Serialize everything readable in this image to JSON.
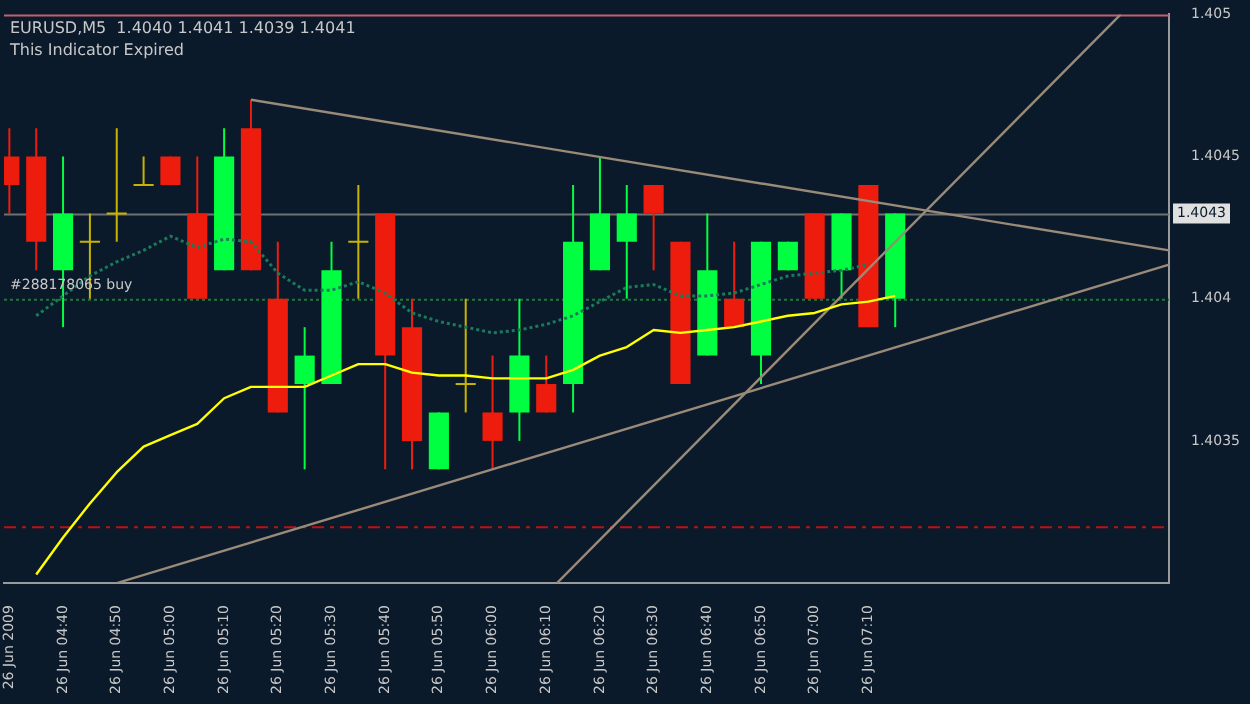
{
  "chart_data": {
    "type": "candlestick",
    "title": "EURUSD,M5  1.4040 1.4041 1.4039 1.4041",
    "annotations": [
      "This Indicator Expired"
    ],
    "x": [
      "2009-06-26T04:30",
      "2009-06-26T04:35",
      "2009-06-26T04:40",
      "2009-06-26T04:45",
      "2009-06-26T04:50",
      "2009-06-26T04:55",
      "2009-06-26T05:00",
      "2009-06-26T05:05",
      "2009-06-26T05:10",
      "2009-06-26T05:15",
      "2009-06-26T05:20",
      "2009-06-26T05:25",
      "2009-06-26T05:30",
      "2009-06-26T05:35",
      "2009-06-26T05:40",
      "2009-06-26T05:45",
      "2009-06-26T05:50",
      "2009-06-26T05:55",
      "2009-06-26T06:00",
      "2009-06-26T06:05",
      "2009-06-26T06:10",
      "2009-06-26T06:15",
      "2009-06-26T06:20",
      "2009-06-26T06:25",
      "2009-06-26T06:30",
      "2009-06-26T06:35",
      "2009-06-26T06:40",
      "2009-06-26T06:45",
      "2009-06-26T06:50",
      "2009-06-26T06:55",
      "2009-06-26T07:00",
      "2009-06-26T07:05",
      "2009-06-26T07:10",
      "2009-06-26T07:15"
    ],
    "ohlc": [
      [
        1.4045,
        1.4046,
        1.4043,
        1.4044
      ],
      [
        1.4045,
        1.4046,
        1.4041,
        1.4042
      ],
      [
        1.4041,
        1.4045,
        1.4039,
        1.4043
      ],
      [
        1.4042,
        1.4043,
        1.404,
        1.4042
      ],
      [
        1.4043,
        1.4046,
        1.4042,
        1.4043
      ],
      [
        1.4044,
        1.4045,
        1.4044,
        1.4044
      ],
      [
        1.4045,
        1.4045,
        1.4044,
        1.4044
      ],
      [
        1.4043,
        1.4045,
        1.404,
        1.404
      ],
      [
        1.4041,
        1.4046,
        1.4041,
        1.4045
      ],
      [
        1.4046,
        1.4047,
        1.4041,
        1.4041
      ],
      [
        1.404,
        1.4042,
        1.4036,
        1.4036
      ],
      [
        1.4037,
        1.4039,
        1.4034,
        1.4038
      ],
      [
        1.4037,
        1.4042,
        1.4037,
        1.4041
      ],
      [
        1.4042,
        1.4044,
        1.404,
        1.4042
      ],
      [
        1.4043,
        1.4043,
        1.4034,
        1.4038
      ],
      [
        1.4039,
        1.404,
        1.4034,
        1.4035
      ],
      [
        1.4034,
        1.4036,
        1.4034,
        1.4036
      ],
      [
        1.4037,
        1.404,
        1.4036,
        1.4037
      ],
      [
        1.4036,
        1.4038,
        1.4034,
        1.4035
      ],
      [
        1.4036,
        1.404,
        1.4035,
        1.4038
      ],
      [
        1.4037,
        1.4038,
        1.4036,
        1.4036
      ],
      [
        1.4037,
        1.4044,
        1.4036,
        1.4042
      ],
      [
        1.4041,
        1.4045,
        1.4041,
        1.4043
      ],
      [
        1.4042,
        1.4044,
        1.404,
        1.4043
      ],
      [
        1.4044,
        1.4044,
        1.4041,
        1.4043
      ],
      [
        1.4042,
        1.4042,
        1.4037,
        1.4037
      ],
      [
        1.4038,
        1.4043,
        1.4038,
        1.4041
      ],
      [
        1.404,
        1.4042,
        1.4039,
        1.4039
      ],
      [
        1.4038,
        1.4042,
        1.4037,
        1.4042
      ],
      [
        1.4041,
        1.4042,
        1.4041,
        1.4042
      ],
      [
        1.4043,
        1.4043,
        1.404,
        1.404
      ],
      [
        1.4041,
        1.4043,
        1.404,
        1.4043
      ],
      [
        1.4044,
        1.4044,
        1.4039,
        1.4039
      ],
      [
        1.404,
        1.4043,
        1.4039,
        1.4043
      ]
    ],
    "colors": [
      "#ee1c0c",
      "#ee1c0c",
      "#00ff40",
      "#c8b400",
      "#c8b400",
      "#c8b400",
      "#ee1c0c",
      "#ee1c0c",
      "#00ff40",
      "#ee1c0c",
      "#ee1c0c",
      "#00ff40",
      "#00ff40",
      "#c8b400",
      "#ee1c0c",
      "#ee1c0c",
      "#00ff40",
      "#c8b400",
      "#ee1c0c",
      "#00ff40",
      "#ee1c0c",
      "#00ff40",
      "#00ff40",
      "#00ff40",
      "#ee1c0c",
      "#ee1c0c",
      "#00ff40",
      "#ee1c0c",
      "#00ff40",
      "#00ff40",
      "#ee1c0c",
      "#00ff40",
      "#ee1c0c",
      "#00ff40"
    ],
    "series": [
      {
        "type": "line",
        "color": "#ffff00",
        "line_style": "solid",
        "x": [
          "2009-06-26T04:35",
          "2009-06-26T04:40",
          "2009-06-26T04:45",
          "2009-06-26T04:50",
          "2009-06-26T04:55",
          "2009-06-26T05:00",
          "2009-06-26T05:05",
          "2009-06-26T05:10",
          "2009-06-26T05:15",
          "2009-06-26T05:20",
          "2009-06-26T05:25",
          "2009-06-26T05:30",
          "2009-06-26T05:35",
          "2009-06-26T05:40",
          "2009-06-26T05:45",
          "2009-06-26T05:50",
          "2009-06-26T05:55",
          "2009-06-26T06:00",
          "2009-06-26T06:05",
          "2009-06-26T06:10",
          "2009-06-26T06:15",
          "2009-06-26T06:20",
          "2009-06-26T06:25",
          "2009-06-26T06:30",
          "2009-06-26T06:35",
          "2009-06-26T06:40",
          "2009-06-26T06:45",
          "2009-06-26T06:50",
          "2009-06-26T06:55",
          "2009-06-26T07:00",
          "2009-06-26T07:05",
          "2009-06-26T07:10",
          "2009-06-26T07:15"
        ],
        "values": [
          1.40303,
          1.40316,
          1.40328,
          1.40339,
          1.40348,
          1.40352,
          1.40356,
          1.40365,
          1.40369,
          1.40369,
          1.40369,
          1.40373,
          1.40377,
          1.40377,
          1.40374,
          1.40373,
          1.40373,
          1.40372,
          1.40372,
          1.40372,
          1.40375,
          1.4038,
          1.40383,
          1.40389,
          1.40388,
          1.40389,
          1.4039,
          1.40392,
          1.40394,
          1.40395,
          1.40398,
          1.40399,
          1.40401
        ]
      },
      {
        "type": "line",
        "color": "#1a7a5a",
        "line_style": "dotted",
        "x": [
          "2009-06-26T04:35",
          "2009-06-26T04:40",
          "2009-06-26T04:45",
          "2009-06-26T04:50",
          "2009-06-26T04:55",
          "2009-06-26T05:00",
          "2009-06-26T05:05",
          "2009-06-26T05:10",
          "2009-06-26T05:15",
          "2009-06-26T05:20",
          "2009-06-26T05:25",
          "2009-06-26T05:30",
          "2009-06-26T05:35",
          "2009-06-26T05:40",
          "2009-06-26T05:45",
          "2009-06-26T05:50",
          "2009-06-26T05:55",
          "2009-06-26T06:00",
          "2009-06-26T06:05",
          "2009-06-26T06:10",
          "2009-06-26T06:15",
          "2009-06-26T06:20",
          "2009-06-26T06:25",
          "2009-06-26T06:30",
          "2009-06-26T06:35",
          "2009-06-26T06:40",
          "2009-06-26T06:45",
          "2009-06-26T06:50",
          "2009-06-26T06:55",
          "2009-06-26T07:00",
          "2009-06-26T07:05",
          "2009-06-26T07:10"
        ],
        "values": [
          1.40394,
          1.40401,
          1.40408,
          1.40413,
          1.40417,
          1.40422,
          1.40418,
          1.40421,
          1.4042,
          1.40409,
          1.40403,
          1.40403,
          1.40406,
          1.40402,
          1.40395,
          1.40392,
          1.4039,
          1.40388,
          1.40389,
          1.40391,
          1.40394,
          1.40399,
          1.40404,
          1.40405,
          1.40401,
          1.40401,
          1.40402,
          1.40405,
          1.40408,
          1.40409,
          1.4041,
          1.40412
        ]
      },
      {
        "type": "line",
        "color": "#9a8a78",
        "line_style": "solid",
        "x": [
          "2009-06-26T05:15",
          "2009-06-26T08:06"
        ],
        "values": [
          1.4047,
          1.40417
        ]
      },
      {
        "type": "line",
        "color": "#9a8a78",
        "line_style": "solid",
        "x": [
          "2009-06-26T04:50",
          "2009-06-26T08:06"
        ],
        "values": [
          1.403,
          1.40412
        ]
      },
      {
        "type": "line",
        "color": "#9a8a78",
        "line_style": "solid",
        "x": [
          "2009-06-26T06:12",
          "2009-06-26T07:57"
        ],
        "values": [
          1.403,
          1.405
        ]
      }
    ],
    "ref_lines": [
      {
        "axis": "y",
        "value": 1.4043,
        "label": "1.4043",
        "color": "#707070",
        "line_style": "solid"
      },
      {
        "axis": "y",
        "value": 1.404,
        "label": "#288178065 buy",
        "color": "#1f7a3a",
        "line_style": "dotted"
      },
      {
        "axis": "y",
        "value": 1.4032,
        "color": "#c01010",
        "line_style": "dashed"
      },
      {
        "axis": "y",
        "value": 1.405,
        "color": "#c06070",
        "line_style": "solid"
      }
    ],
    "xlim": [
      "2009-06-26T04:29",
      "2009-06-26T08:06"
    ],
    "xticks": [
      {
        "value": "2009-06-26T04:30",
        "label": "26 Jun 2009"
      },
      {
        "value": "2009-06-26T04:40",
        "label": "26 Jun 04:40"
      },
      {
        "value": "2009-06-26T04:50",
        "label": "26 Jun 04:50"
      },
      {
        "value": "2009-06-26T05:00",
        "label": "26 Jun 05:00"
      },
      {
        "value": "2009-06-26T05:10",
        "label": "26 Jun 05:10"
      },
      {
        "value": "2009-06-26T05:20",
        "label": "26 Jun 05:20"
      },
      {
        "value": "2009-06-26T05:30",
        "label": "26 Jun 05:30"
      },
      {
        "value": "2009-06-26T05:40",
        "label": "26 Jun 05:40"
      },
      {
        "value": "2009-06-26T05:50",
        "label": "26 Jun 05:50"
      },
      {
        "value": "2009-06-26T06:00",
        "label": "26 Jun 06:00"
      },
      {
        "value": "2009-06-26T06:10",
        "label": "26 Jun 06:10"
      },
      {
        "value": "2009-06-26T06:20",
        "label": "26 Jun 06:20"
      },
      {
        "value": "2009-06-26T06:30",
        "label": "26 Jun 06:30"
      },
      {
        "value": "2009-06-26T06:40",
        "label": "26 Jun 06:40"
      },
      {
        "value": "2009-06-26T06:50",
        "label": "26 Jun 06:50"
      },
      {
        "value": "2009-06-26T07:00",
        "label": "26 Jun 07:00"
      },
      {
        "value": "2009-06-26T07:10",
        "label": "26 Jun 07:10"
      }
    ],
    "ylim": [
      1.403,
      1.405
    ],
    "yticks": [
      1.4035,
      1.404,
      1.4045,
      1.405
    ]
  }
}
